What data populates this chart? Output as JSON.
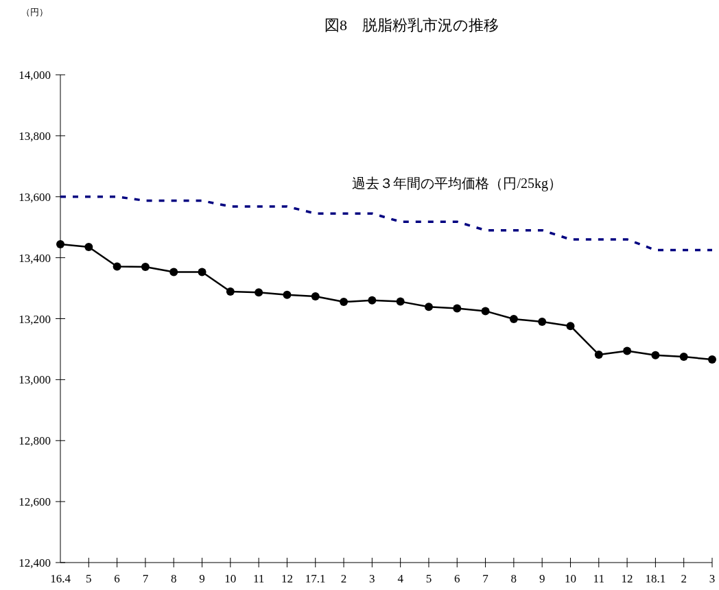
{
  "chart_data": {
    "type": "line",
    "title": "図8　脱脂粉乳市況の推移",
    "annotations": [
      "（円）"
    ],
    "categories": [
      "16.4",
      "5",
      "6",
      "7",
      "8",
      "9",
      "10",
      "11",
      "12",
      "17.1",
      "2",
      "3",
      "4",
      "5",
      "6",
      "7",
      "8",
      "9",
      "10",
      "11",
      "12",
      "18.1",
      "2",
      "3"
    ],
    "series": [
      {
        "color": "#000000",
        "marker": "circle",
        "line_style": "solid",
        "values": [
          13444,
          13435,
          13371,
          13370,
          13353,
          13353,
          13289,
          13286,
          13278,
          13273,
          13255,
          13260,
          13256,
          13239,
          13234,
          13225,
          13199,
          13190,
          13176,
          13082,
          13094,
          13080,
          13075,
          13066
        ]
      },
      {
        "name": "過去３年間の平均価格（円/25kg）",
        "color": "#000080",
        "marker": "none",
        "line_style": "dashed",
        "values": [
          13600,
          13600,
          13600,
          13587,
          13587,
          13587,
          13568,
          13568,
          13568,
          13545,
          13545,
          13545,
          13518,
          13518,
          13518,
          13490,
          13490,
          13490,
          13460,
          13460,
          13460,
          13425,
          13425,
          13425
        ]
      }
    ],
    "ylim": [
      12400,
      14000
    ],
    "yticks": [
      {
        "value": 12400,
        "label": "12,400"
      },
      {
        "value": 12600,
        "label": "12,600"
      },
      {
        "value": 12800,
        "label": "12,800"
      },
      {
        "value": 13000,
        "label": "13,000"
      },
      {
        "value": 13200,
        "label": "13,200"
      },
      {
        "value": 13400,
        "label": "13,400"
      },
      {
        "value": 13600,
        "label": "13,600"
      },
      {
        "value": 13800,
        "label": "13,800"
      },
      {
        "value": 14000,
        "label": "14,000"
      }
    ],
    "grid": false
  }
}
